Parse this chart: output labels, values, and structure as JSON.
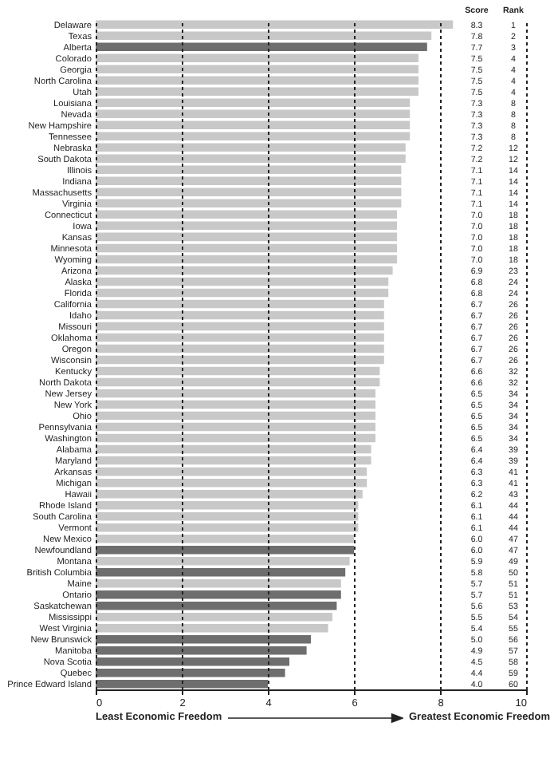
{
  "chart_data": {
    "type": "bar",
    "orientation": "horizontal",
    "xlabel": "Least Economic Freedom",
    "categories": [
      "Delaware",
      "Texas",
      "Alberta",
      "Colorado",
      "Georgia",
      "North Carolina",
      "Utah",
      "Louisiana",
      "Nevada",
      "New Hampshire",
      "Tennessee",
      "Nebraska",
      "South Dakota",
      "Illinois",
      "Indiana",
      "Massachusetts",
      "Virginia",
      "Connecticut",
      "Iowa",
      "Kansas",
      "Minnesota",
      "Wyoming",
      "Arizona",
      "Alaska",
      "Florida",
      "California",
      "Idaho",
      "Missouri",
      "Oklahoma",
      "Oregon",
      "Wisconsin",
      "Kentucky",
      "North Dakota",
      "New Jersey",
      "New York",
      "Ohio",
      "Pennsylvania",
      "Washington",
      "Alabama",
      "Maryland",
      "Arkansas",
      "Michigan",
      "Hawaii",
      "Rhode Island",
      "South Carolina",
      "Vermont",
      "New Mexico",
      "Newfoundland",
      "Montana",
      "British Columbia",
      "Maine",
      "Ontario",
      "Saskatchewan",
      "Mississippi",
      "West Virginia",
      "New Brunswick",
      "Manitoba",
      "Nova Scotia",
      "Quebec",
      "Prince Edward Island"
    ],
    "values": [
      8.3,
      7.8,
      7.7,
      7.5,
      7.5,
      7.5,
      7.5,
      7.3,
      7.3,
      7.3,
      7.3,
      7.2,
      7.2,
      7.1,
      7.1,
      7.1,
      7.1,
      7.0,
      7.0,
      7.0,
      7.0,
      7.0,
      6.9,
      6.8,
      6.8,
      6.7,
      6.7,
      6.7,
      6.7,
      6.7,
      6.7,
      6.6,
      6.6,
      6.5,
      6.5,
      6.5,
      6.5,
      6.5,
      6.4,
      6.4,
      6.3,
      6.3,
      6.2,
      6.1,
      6.1,
      6.1,
      6.0,
      6.0,
      5.9,
      5.8,
      5.7,
      5.7,
      5.6,
      5.5,
      5.4,
      5.0,
      4.9,
      4.5,
      4.4,
      4.0
    ],
    "colors": [
      "#c8c8c8",
      "#c8c8c8",
      "#6e6e6e",
      "#c8c8c8",
      "#c8c8c8",
      "#c8c8c8",
      "#c8c8c8",
      "#c8c8c8",
      "#c8c8c8",
      "#c8c8c8",
      "#c8c8c8",
      "#c8c8c8",
      "#c8c8c8",
      "#c8c8c8",
      "#c8c8c8",
      "#c8c8c8",
      "#c8c8c8",
      "#c8c8c8",
      "#c8c8c8",
      "#c8c8c8",
      "#c8c8c8",
      "#c8c8c8",
      "#c8c8c8",
      "#c8c8c8",
      "#c8c8c8",
      "#c8c8c8",
      "#c8c8c8",
      "#c8c8c8",
      "#c8c8c8",
      "#c8c8c8",
      "#c8c8c8",
      "#c8c8c8",
      "#c8c8c8",
      "#c8c8c8",
      "#c8c8c8",
      "#c8c8c8",
      "#c8c8c8",
      "#c8c8c8",
      "#c8c8c8",
      "#c8c8c8",
      "#c8c8c8",
      "#c8c8c8",
      "#c8c8c8",
      "#c8c8c8",
      "#c8c8c8",
      "#c8c8c8",
      "#c8c8c8",
      "#6e6e6e",
      "#c8c8c8",
      "#6e6e6e",
      "#c8c8c8",
      "#6e6e6e",
      "#6e6e6e",
      "#c8c8c8",
      "#c8c8c8",
      "#6e6e6e",
      "#6e6e6e",
      "#6e6e6e",
      "#6e6e6e",
      "#6e6e6e"
    ],
    "xlim": [
      0,
      10
    ],
    "xticks": [
      0,
      2,
      4,
      6,
      8,
      10
    ],
    "grid": "x",
    "annotations": [
      "Score",
      "Rank",
      "Greatest Economic Freedom",
      "8.3",
      "1",
      "7.8",
      "2",
      "7.7",
      "3",
      "7.5",
      "4",
      "7.5",
      "4",
      "7.5",
      "4",
      "7.5",
      "4",
      "7.3",
      "8",
      "7.3",
      "8",
      "7.3",
      "8",
      "7.3",
      "8",
      "7.2",
      "12",
      "7.2",
      "12",
      "7.1",
      "14",
      "7.1",
      "14",
      "7.1",
      "14",
      "7.1",
      "14",
      "7.0",
      "18",
      "7.0",
      "18",
      "7.0",
      "18",
      "7.0",
      "18",
      "7.0",
      "18",
      "6.9",
      "23",
      "6.8",
      "24",
      "6.8",
      "24",
      "6.7",
      "26",
      "6.7",
      "26",
      "6.7",
      "26",
      "6.7",
      "26",
      "6.7",
      "26",
      "6.7",
      "26",
      "6.6",
      "32",
      "6.6",
      "32",
      "6.5",
      "34",
      "6.5",
      "34",
      "6.5",
      "34",
      "6.5",
      "34",
      "6.5",
      "34",
      "6.4",
      "39",
      "6.4",
      "39",
      "6.3",
      "41",
      "6.3",
      "41",
      "6.2",
      "43",
      "6.1",
      "44",
      "6.1",
      "44",
      "6.1",
      "44",
      "6.0",
      "47",
      "6.0",
      "47",
      "5.9",
      "49",
      "5.8",
      "50",
      "5.7",
      "51",
      "5.7",
      "51",
      "5.6",
      "53",
      "5.5",
      "54",
      "5.4",
      "55",
      "5.0",
      "56",
      "4.9",
      "57",
      "4.5",
      "58",
      "4.4",
      "59",
      "4.0",
      "60"
    ]
  }
}
